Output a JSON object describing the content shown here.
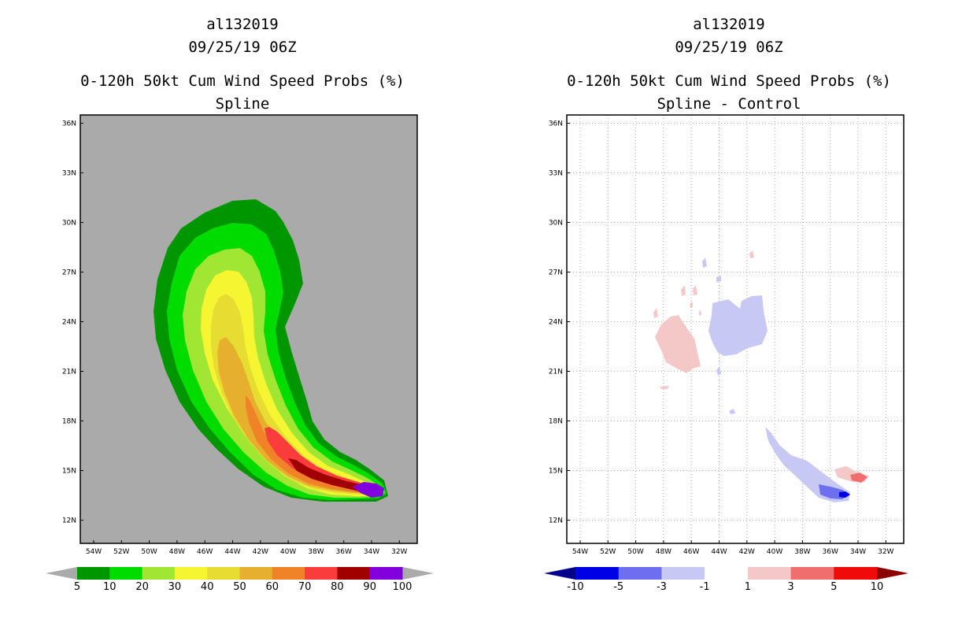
{
  "chart_data": [
    {
      "type": "filled-contour-map",
      "storm_id": "al132019",
      "datetime": "09/25/19 06Z",
      "title": "0-120h 50kt Cum Wind Speed Probs (%)",
      "subtitle": "Spline",
      "lat_ticks": [
        "12N",
        "15N",
        "18N",
        "21N",
        "24N",
        "27N",
        "30N",
        "33N",
        "36N"
      ],
      "lon_ticks": [
        "54W",
        "52W",
        "50W",
        "48W",
        "46W",
        "44W",
        "42W",
        "40W",
        "38W",
        "36W",
        "34W",
        "32W"
      ],
      "colorbar": {
        "labels": [
          "5",
          "10",
          "20",
          "30",
          "40",
          "50",
          "60",
          "70",
          "80",
          "90",
          "100"
        ],
        "colors": [
          "#009600",
          "#00dc00",
          "#a0e632",
          "#f5f532",
          "#e6dc32",
          "#e6af2d",
          "#f08228",
          "#fa3c3c",
          "#a00000",
          "#8200dc"
        ],
        "under_color": "#aaaaaa",
        "over_color": "#aaaaaa"
      },
      "background_color": "#aaaaaa"
    },
    {
      "type": "filled-contour-map",
      "storm_id": "al132019",
      "datetime": "09/25/19 06Z",
      "title": "0-120h 50kt Cum Wind Speed Probs (%)",
      "subtitle": "Spline - Control",
      "lat_ticks": [
        "12N",
        "15N",
        "18N",
        "21N",
        "24N",
        "27N",
        "30N",
        "33N",
        "36N"
      ],
      "lon_ticks": [
        "54W",
        "52W",
        "50W",
        "48W",
        "46W",
        "44W",
        "42W",
        "40W",
        "38W",
        "36W",
        "34W",
        "32W"
      ],
      "colorbar": {
        "labels": [
          "-10",
          "-5",
          "-3",
          "-1",
          "1",
          "3",
          "5",
          "10"
        ],
        "colors": [
          "#0000e6",
          "#6e6ef0",
          "#c8c8f5",
          "#ffffff",
          "#f5c8c8",
          "#f06e6e",
          "#f00a0a"
        ],
        "under_color": "#00008c",
        "over_color": "#8c0000"
      },
      "grid": true,
      "background_color": "#ffffff"
    }
  ]
}
